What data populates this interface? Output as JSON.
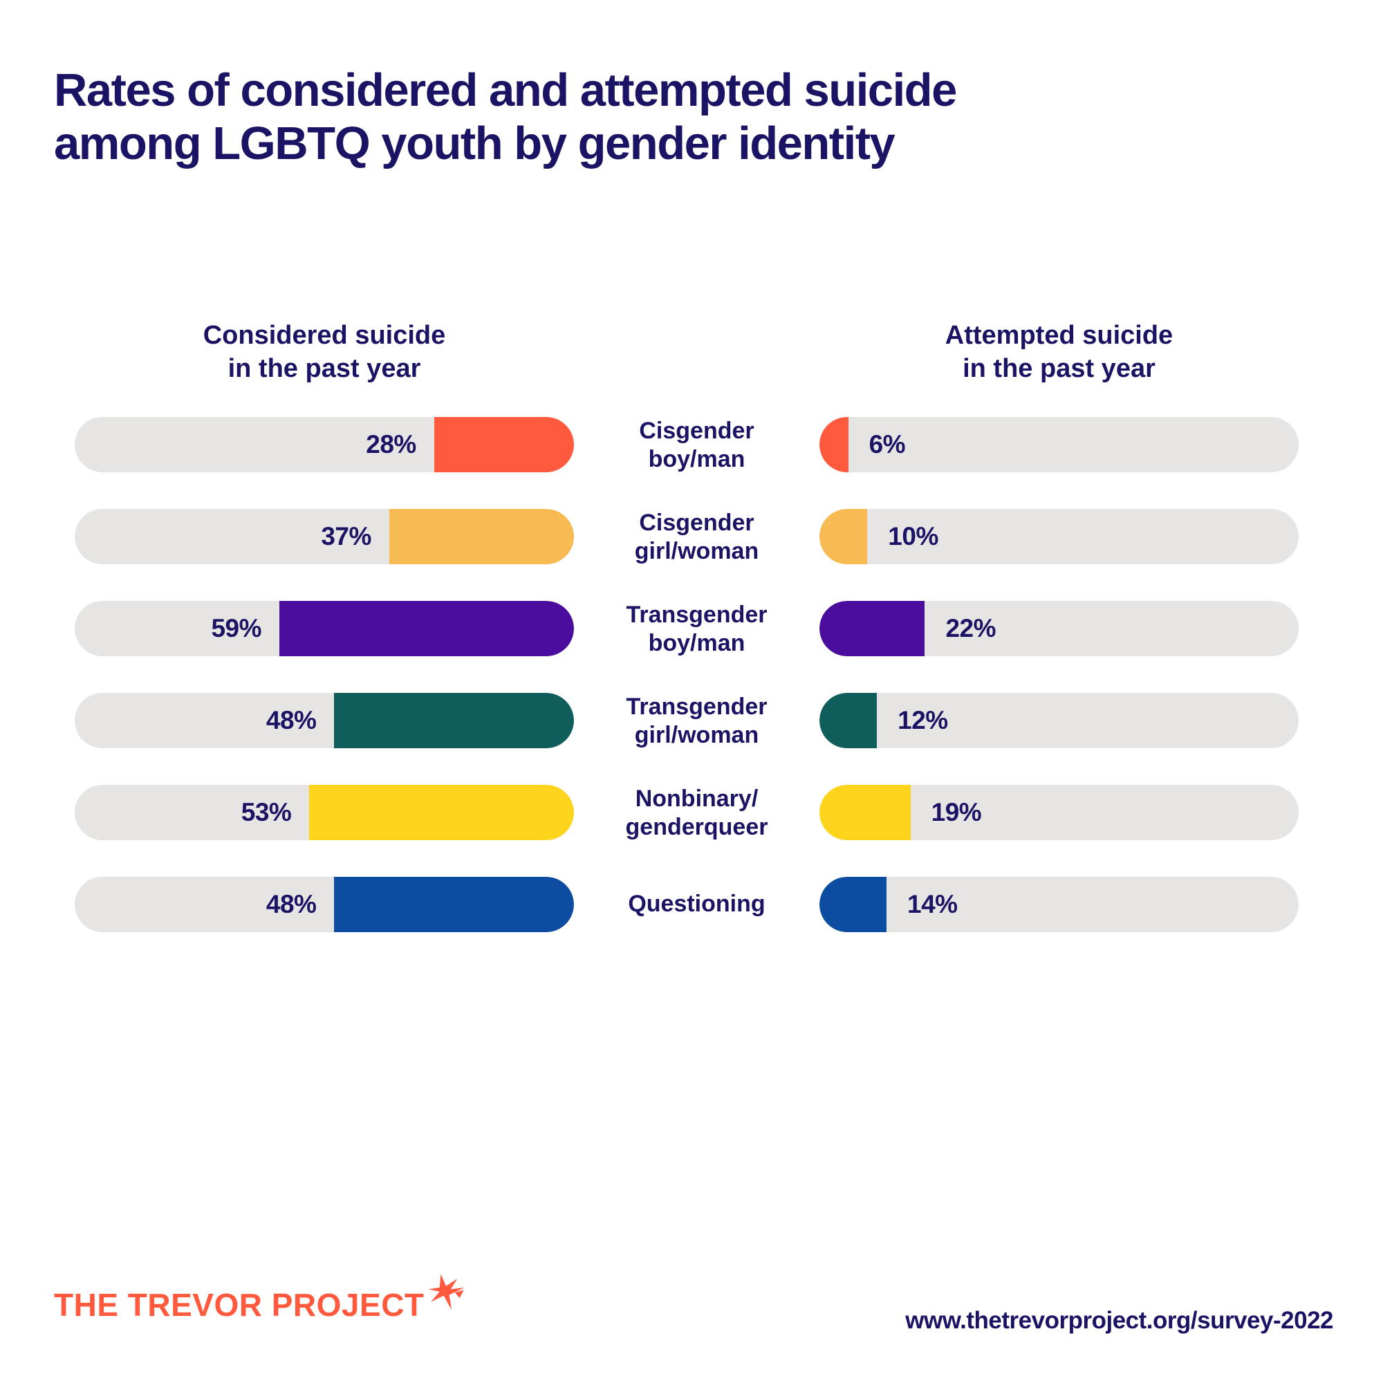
{
  "title": "Rates of considered and attempted suicide\namong LGBTQ youth by gender identity",
  "column_headers": {
    "considered": "Considered suicide\nin the past year",
    "attempted": "Attempted suicide\nin the past year"
  },
  "rows": [
    {
      "label": "Cisgender\nboy/man",
      "considered_pct": 28,
      "considered_label": "28%",
      "attempted_pct": 6,
      "attempted_label": "6%",
      "color": "#FF5A3D"
    },
    {
      "label": "Cisgender\ngirl/woman",
      "considered_pct": 37,
      "considered_label": "37%",
      "attempted_pct": 10,
      "attempted_label": "10%",
      "color": "#F8BB54"
    },
    {
      "label": "Transgender\nboy/man",
      "considered_pct": 59,
      "considered_label": "59%",
      "attempted_pct": 22,
      "attempted_label": "22%",
      "color": "#4A0D9E"
    },
    {
      "label": "Transgender\ngirl/woman",
      "considered_pct": 48,
      "considered_label": "48%",
      "attempted_pct": 12,
      "attempted_label": "12%",
      "color": "#0F5E5B"
    },
    {
      "label": "Nonbinary/\ngenderqueer",
      "considered_pct": 53,
      "considered_label": "53%",
      "attempted_pct": 19,
      "attempted_label": "19%",
      "color": "#FFD41D"
    },
    {
      "label": "Questioning",
      "considered_pct": 48,
      "considered_label": "48%",
      "attempted_pct": 14,
      "attempted_label": "14%",
      "color": "#0C4DA2"
    }
  ],
  "footer": {
    "logo_text": "THE TREVOR PROJECT",
    "url": "www.thetrevorproject.org/survey-2022"
  },
  "colors": {
    "text_navy": "#1B1464",
    "track_gray": "#E6E5E4",
    "brand_orange": "#FF5A3D",
    "background": "#FFFFFF"
  },
  "chart_data": {
    "type": "bar",
    "orientation": "horizontal",
    "title": "Rates of considered and attempted suicide among LGBTQ youth by gender identity",
    "categories": [
      "Cisgender boy/man",
      "Cisgender girl/woman",
      "Transgender boy/man",
      "Transgender girl/woman",
      "Nonbinary/genderqueer",
      "Questioning"
    ],
    "series": [
      {
        "name": "Considered suicide in the past year",
        "values": [
          28,
          37,
          59,
          48,
          53,
          48
        ]
      },
      {
        "name": "Attempted suicide in the past year",
        "values": [
          6,
          10,
          22,
          12,
          19,
          14
        ]
      }
    ],
    "unit": "%",
    "value_range": [
      0,
      100
    ],
    "grid": false,
    "legend_position": "column headers above each bar group",
    "bar_colors_by_category": [
      "#FF5A3D",
      "#F8BB54",
      "#4A0D9E",
      "#0F5E5B",
      "#FFD41D",
      "#0C4DA2"
    ],
    "track_color": "#E6E5E4",
    "layout_hint": "considered bars fill right-to-left toward center labels; attempted bars fill left-to-right from center labels"
  }
}
